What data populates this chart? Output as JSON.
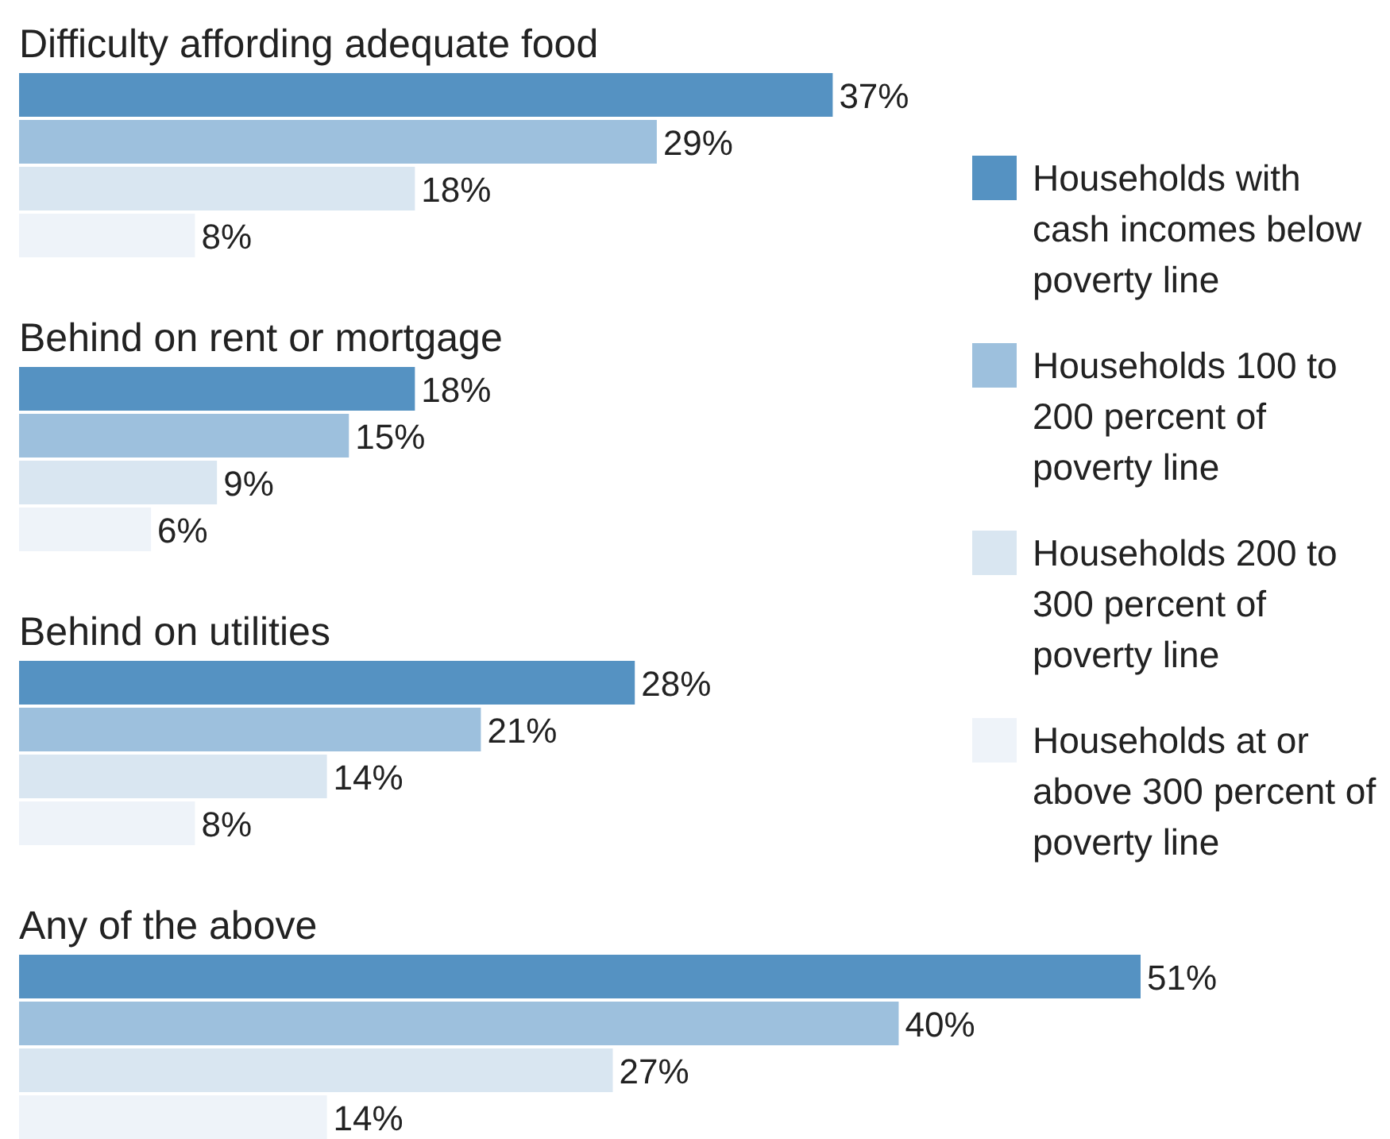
{
  "chart_data": {
    "type": "bar",
    "orientation": "horizontal",
    "categories": [
      "Difficulty affording adequate food",
      "Behind on rent or mortgage",
      "Behind on utilities",
      "Any of the above"
    ],
    "series": [
      {
        "name": "Households with cash incomes below poverty line",
        "color": "#5592c2",
        "values": [
          37,
          18,
          28,
          51
        ],
        "value_labels": [
          "37%",
          "18%",
          "28%",
          "51%"
        ]
      },
      {
        "name": "Households 100 to 200 percent of poverty line",
        "color": "#9dc0dd",
        "values": [
          29,
          15,
          21,
          40
        ],
        "value_labels": [
          "29%",
          "15%",
          "21%",
          "40%"
        ]
      },
      {
        "name": "Households 200 to 300 percent of poverty line",
        "color": "#d9e6f1",
        "values": [
          18,
          9,
          14,
          27
        ],
        "value_labels": [
          "18%",
          "9%",
          "14%",
          "27%"
        ]
      },
      {
        "name": "Households at or above 300 percent of poverty line",
        "color": "#eef3f9",
        "values": [
          8,
          6,
          8,
          14
        ],
        "value_labels": [
          "8%",
          "6%",
          "8%",
          "14%"
        ]
      }
    ],
    "legend": "right",
    "grid": false
  }
}
